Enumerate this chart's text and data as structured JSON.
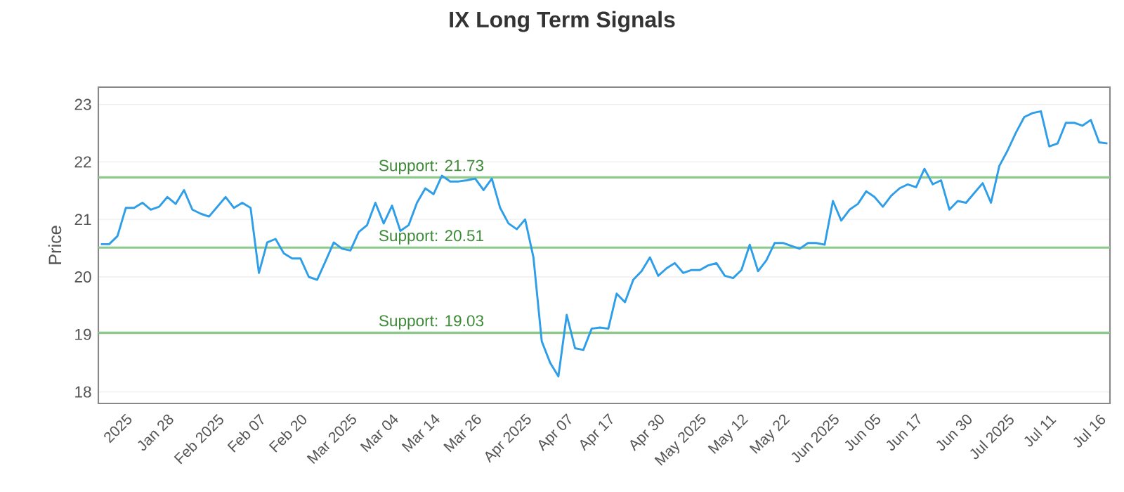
{
  "chart_data": {
    "type": "line",
    "title": "IX Long Term Signals",
    "ylabel": "Price",
    "categories": [
      null,
      null,
      null,
      "2025",
      null,
      null,
      null,
      null,
      "Jan 28",
      null,
      null,
      null,
      null,
      null,
      "Feb 2025",
      null,
      null,
      null,
      null,
      "Feb 07",
      null,
      null,
      null,
      null,
      "Feb 20",
      null,
      null,
      null,
      null,
      null,
      "Mar 2025",
      null,
      null,
      null,
      null,
      "Mar 04",
      null,
      null,
      null,
      null,
      "Mar 14",
      null,
      null,
      null,
      null,
      "Mar 26",
      null,
      null,
      null,
      null,
      null,
      "Apr 2025",
      null,
      null,
      null,
      null,
      "Apr 07",
      null,
      null,
      null,
      null,
      "Apr 17",
      null,
      null,
      null,
      null,
      null,
      "Apr 30",
      null,
      null,
      null,
      null,
      "May 2025",
      null,
      null,
      null,
      null,
      "May 12",
      null,
      null,
      null,
      null,
      "May 22",
      null,
      null,
      null,
      null,
      null,
      "Jun 2025",
      null,
      null,
      null,
      null,
      "Jun 05",
      null,
      null,
      null,
      null,
      "Jun 17",
      null,
      null,
      null,
      null,
      null,
      "Jun 30",
      null,
      null,
      null,
      null,
      "Jul 2025",
      null,
      null,
      null,
      null,
      "Jul 11",
      null,
      null,
      null,
      null,
      null,
      "Jul 16",
      null
    ],
    "series": [
      {
        "color": "#2f9ee8",
        "values": [
          20.57,
          20.57,
          20.71,
          21.2,
          21.2,
          21.29,
          21.17,
          21.22,
          21.39,
          21.27,
          21.51,
          21.17,
          21.1,
          21.05,
          21.22,
          21.39,
          21.2,
          21.29,
          21.2,
          20.07,
          20.6,
          20.66,
          20.41,
          20.32,
          20.32,
          20.0,
          19.95,
          20.27,
          20.6,
          20.49,
          20.46,
          20.78,
          20.9,
          21.29,
          20.93,
          21.24,
          20.8,
          20.9,
          21.29,
          21.54,
          21.44,
          21.76,
          21.66,
          21.66,
          21.68,
          21.71,
          21.51,
          21.71,
          21.2,
          20.93,
          20.83,
          21.0,
          20.34,
          18.88,
          18.51,
          18.27,
          19.34,
          18.76,
          18.73,
          19.1,
          19.12,
          19.1,
          19.71,
          19.56,
          19.95,
          20.1,
          20.34,
          20.02,
          20.15,
          20.24,
          20.07,
          20.12,
          20.12,
          20.2,
          20.24,
          20.02,
          19.98,
          20.12,
          20.56,
          20.1,
          20.29,
          20.59,
          20.59,
          20.54,
          20.49,
          20.59,
          20.59,
          20.56,
          21.32,
          20.98,
          21.17,
          21.27,
          21.49,
          21.39,
          21.22,
          21.41,
          21.54,
          21.61,
          21.56,
          21.88,
          21.61,
          21.68,
          21.17,
          21.32,
          21.29,
          21.46,
          21.63,
          21.29,
          21.93,
          22.2,
          22.51,
          22.78,
          22.85,
          22.88,
          22.27,
          22.32,
          22.68,
          22.68,
          22.63,
          22.73,
          22.34,
          22.32
        ]
      }
    ],
    "ylim": [
      17.8,
      23.3
    ],
    "yticks": [
      18,
      19,
      20,
      21,
      22,
      23
    ],
    "grid": "y",
    "ref_lines": [
      {
        "axis": "y",
        "value": 21.73,
        "label": "Support: 21.73",
        "color": "#8cc98a"
      },
      {
        "axis": "y",
        "value": 20.51,
        "label": "Support: 20.51",
        "color": "#8cc98a"
      },
      {
        "axis": "y",
        "value": 19.03,
        "label": "Support: 19.03",
        "color": "#8cc98a"
      }
    ]
  }
}
